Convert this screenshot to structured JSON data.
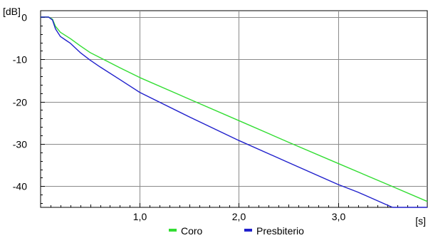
{
  "chart_data": {
    "type": "line",
    "xlabel": "[s]",
    "ylabel": "[dB]",
    "xlim": [
      0,
      3.9
    ],
    "ylim": [
      -45,
      1.5
    ],
    "grid": true,
    "legend_position": "bottom-center",
    "x_ticks": [
      {
        "value": 1.0,
        "label": "1,0"
      },
      {
        "value": 2.0,
        "label": "2,0"
      },
      {
        "value": 3.0,
        "label": "3,0"
      }
    ],
    "y_ticks": [
      {
        "value": 0,
        "label": "0"
      },
      {
        "value": -10,
        "label": "-10"
      },
      {
        "value": -20,
        "label": "-20"
      },
      {
        "value": -30,
        "label": "-30"
      },
      {
        "value": -40,
        "label": "-40"
      }
    ],
    "series": [
      {
        "name": "Coro",
        "color": "#33dd33",
        "x": [
          0,
          0.08,
          0.12,
          0.15,
          0.2,
          0.3,
          0.4,
          0.5,
          0.6,
          0.8,
          1.0,
          1.5,
          2.0,
          2.5,
          3.0,
          3.5,
          3.9
        ],
        "y": [
          0,
          0,
          -0.5,
          -2.2,
          -3.6,
          -5.1,
          -6.8,
          -8.4,
          -9.6,
          -12.0,
          -14.3,
          -19.4,
          -24.5,
          -29.6,
          -34.6,
          -39.6,
          -43.6
        ]
      },
      {
        "name": "Presbiterio",
        "color": "#2020cc",
        "x": [
          0,
          0.08,
          0.12,
          0.15,
          0.2,
          0.25,
          0.3,
          0.4,
          0.5,
          0.6,
          0.8,
          1.0,
          1.5,
          2.0,
          2.5,
          3.0,
          3.2,
          3.5,
          3.55,
          3.9
        ],
        "y": [
          0,
          0,
          -0.7,
          -2.8,
          -4.6,
          -5.4,
          -6.2,
          -8.4,
          -10.2,
          -11.8,
          -14.8,
          -17.8,
          -23.6,
          -29.2,
          -34.4,
          -39.6,
          -41.4,
          -44.5,
          -45,
          -45
        ]
      }
    ]
  }
}
